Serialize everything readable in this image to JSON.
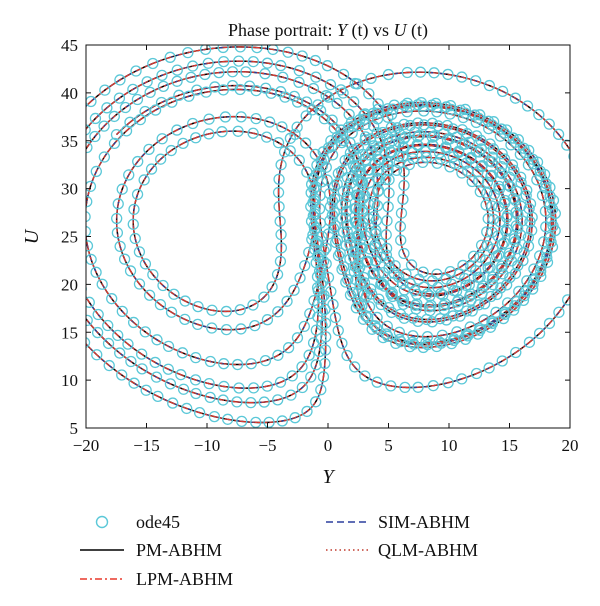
{
  "chart_data": {
    "type": "line",
    "title_prefix": "Phase portrait: ",
    "title_y": "Y",
    "title_t1": " (t)",
    "title_vs": " vs ",
    "title_u": "U",
    "title_t2": " (t)",
    "xlabel": "Y",
    "ylabel": "U",
    "xlim": [
      -20,
      20
    ],
    "ylim": [
      5,
      45
    ],
    "xticks": [
      -20,
      -15,
      -10,
      -5,
      0,
      5,
      10,
      15,
      20
    ],
    "yticks": [
      5,
      10,
      15,
      20,
      25,
      30,
      35,
      40,
      45
    ],
    "grid": false,
    "legend_placement": "bottom",
    "colors": {
      "ode45": "#5bc8d8",
      "pm": "#000000",
      "lpm": "#e8392c",
      "sim": "#2b3f9e",
      "qlm": "#c0392b"
    },
    "series": [
      {
        "name": "ode45"
      },
      {
        "name": "PM-ABHM"
      },
      {
        "name": "LPM-ABHM"
      },
      {
        "name": "SIM-ABHM"
      },
      {
        "name": "QLM-ABHM"
      }
    ]
  }
}
